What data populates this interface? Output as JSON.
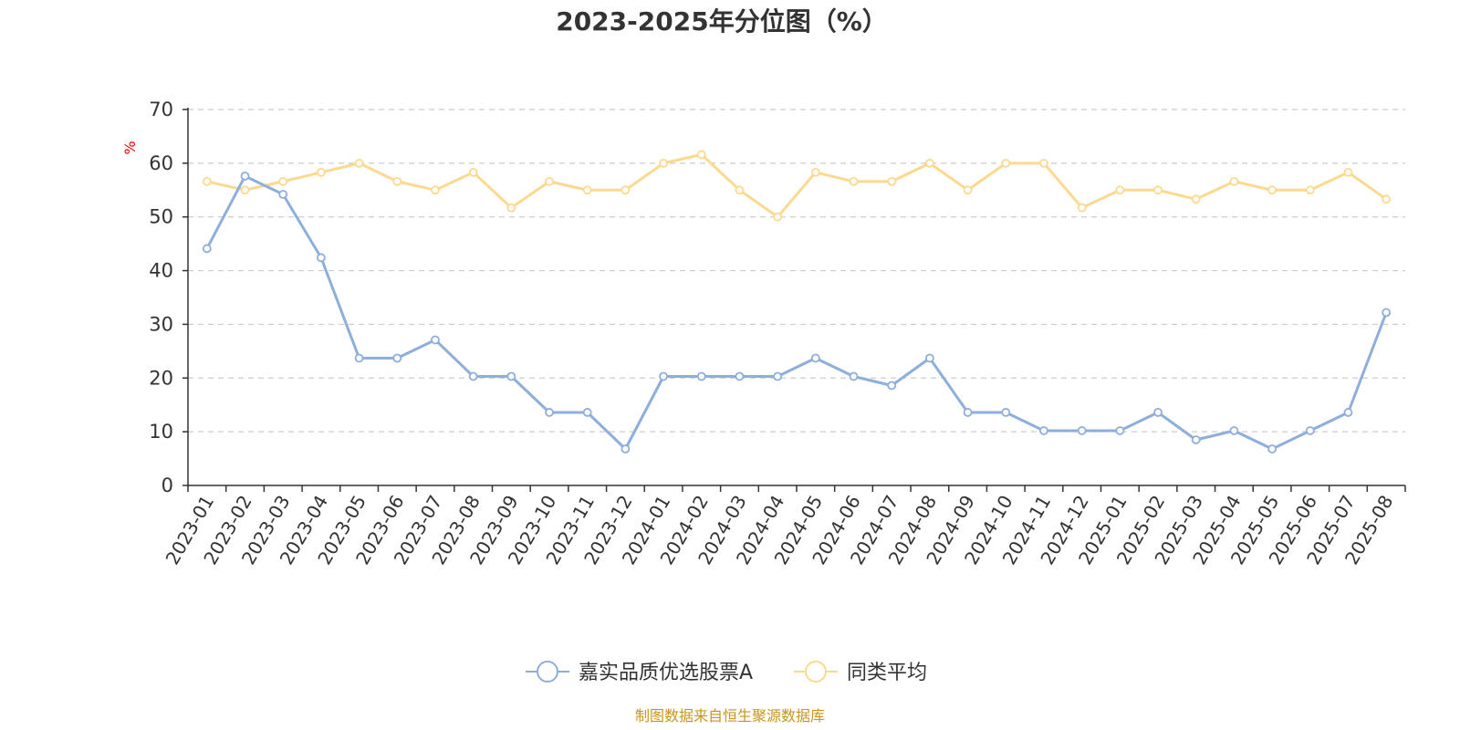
{
  "chart_data": {
    "type": "line",
    "title": "2023-2025年分位图（%）",
    "ylabel": "%",
    "ylim": [
      0,
      70
    ],
    "yticks": [
      0,
      10,
      20,
      30,
      40,
      50,
      60,
      70
    ],
    "grid": true,
    "legend_position": "bottom-center",
    "categories": [
      "2023-01",
      "2023-02",
      "2023-03",
      "2023-04",
      "2023-05",
      "2023-06",
      "2023-07",
      "2023-08",
      "2023-09",
      "2023-10",
      "2023-11",
      "2023-12",
      "2024-01",
      "2024-02",
      "2024-03",
      "2024-04",
      "2024-05",
      "2024-06",
      "2024-07",
      "2024-08",
      "2024-09",
      "2024-10",
      "2024-11",
      "2024-12",
      "2025-01",
      "2025-02",
      "2025-03",
      "2025-04",
      "2025-05",
      "2025-06",
      "2025-07",
      "2025-08"
    ],
    "series": [
      {
        "name": "嘉实品质优选股票A",
        "color": "#8eaedb",
        "values": [
          44.1,
          57.6,
          54.2,
          42.4,
          23.7,
          23.7,
          27.1,
          20.3,
          20.3,
          13.6,
          13.6,
          6.8,
          20.3,
          20.3,
          20.3,
          20.3,
          23.7,
          20.3,
          18.6,
          23.7,
          13.6,
          13.6,
          10.2,
          10.2,
          10.2,
          13.6,
          8.5,
          10.2,
          6.8,
          10.2,
          13.6,
          32.2
        ]
      },
      {
        "name": "同类平均",
        "color": "#fcd98e",
        "values": [
          56.6,
          55.0,
          56.6,
          58.3,
          60.0,
          56.6,
          55.0,
          58.3,
          51.7,
          56.6,
          55.0,
          55.0,
          60.0,
          61.6,
          55.0,
          50.0,
          58.3,
          56.6,
          56.6,
          60.0,
          55.0,
          60.0,
          60.0,
          51.7,
          55.0,
          55.0,
          53.3,
          56.6,
          55.0,
          55.0,
          58.3,
          53.3
        ]
      }
    ]
  },
  "source_text": "制图数据来自恒生聚源数据库",
  "colors": {
    "axis": "#333333",
    "grid": "#cccccc",
    "unit_label": "#ff0000",
    "source_text": "#c8961e"
  }
}
